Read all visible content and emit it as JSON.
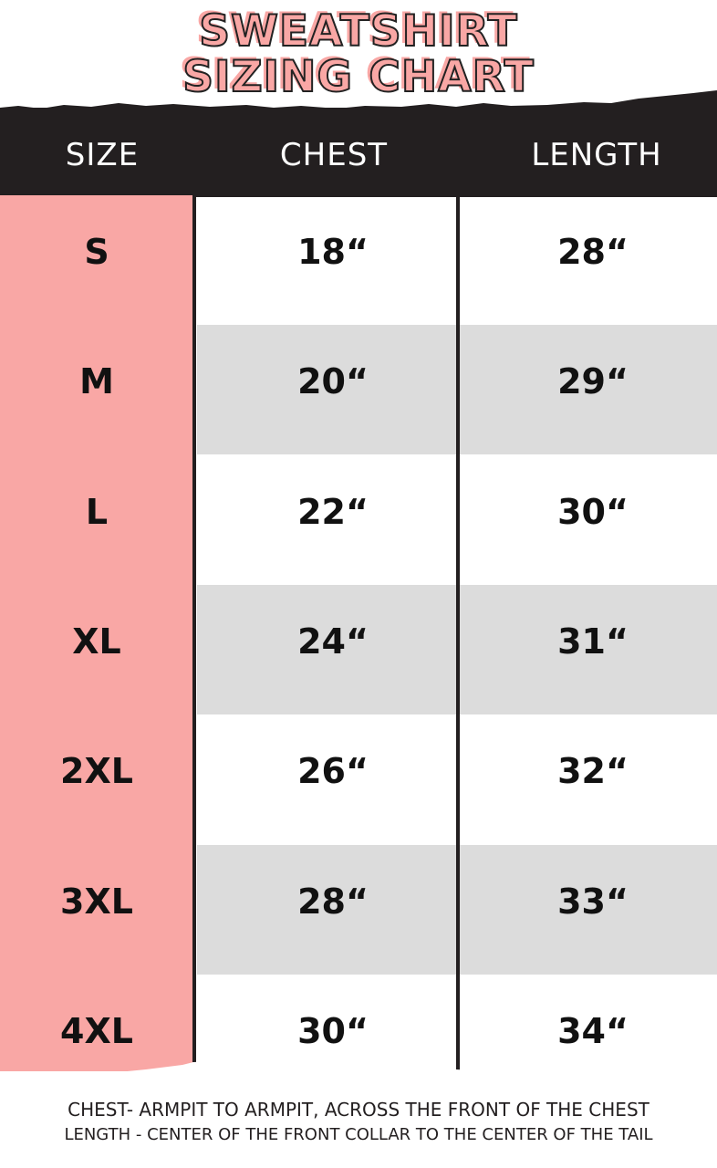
{
  "title": {
    "line1": "SWEATSHIRT",
    "line2": "SIZING CHART"
  },
  "headers": {
    "size": "SIZE",
    "chest": "CHEST",
    "length": "LENGTH"
  },
  "rows": [
    {
      "size": "S",
      "chest": "18“",
      "length": "28“"
    },
    {
      "size": "M",
      "chest": "20“",
      "length": "29“"
    },
    {
      "size": "L",
      "chest": "22“",
      "length": "30“"
    },
    {
      "size": "XL",
      "chest": "24“",
      "length": "31“"
    },
    {
      "size": "2XL",
      "chest": "26“",
      "length": "32“"
    },
    {
      "size": "3XL",
      "chest": "28“",
      "length": "33“"
    },
    {
      "size": "4XL",
      "chest": "30“",
      "length": "34“"
    }
  ],
  "notes": {
    "chest": "CHEST- ARMPIT TO ARMPIT, ACROSS THE FRONT OF THE CHEST",
    "length": "LENGTH - CENTER OF THE FRONT COLLAR TO THE CENTER OF THE TAIL"
  },
  "colors": {
    "accent": "#f9a7a5",
    "dark": "#231f20",
    "stripe": "#dcdcdc"
  }
}
